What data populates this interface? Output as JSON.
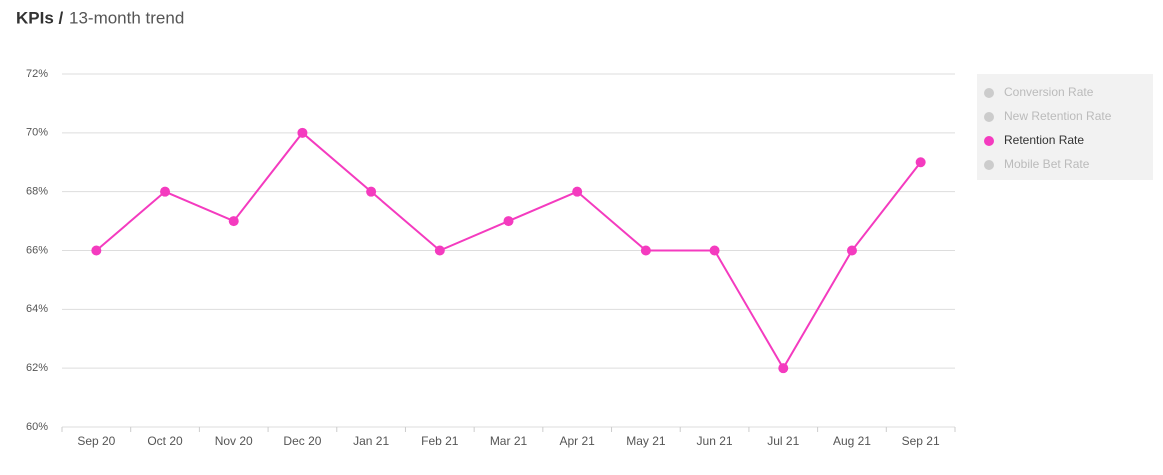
{
  "chart_data": {
    "type": "line",
    "title": "KPIs /",
    "subtitle": "13-month trend",
    "categories": [
      "Sep 20",
      "Oct 20",
      "Nov 20",
      "Dec 20",
      "Jan 21",
      "Feb 21",
      "Mar 21",
      "Apr 21",
      "May 21",
      "Jun 21",
      "Jul 21",
      "Aug 21",
      "Sep 21"
    ],
    "series": [
      {
        "name": "Conversion Rate",
        "color": "#cccccc",
        "visible": false,
        "values": [
          null,
          null,
          null,
          null,
          null,
          null,
          null,
          null,
          null,
          null,
          null,
          null,
          null
        ]
      },
      {
        "name": "New Retention Rate",
        "color": "#cccccc",
        "visible": false,
        "values": [
          null,
          null,
          null,
          null,
          null,
          null,
          null,
          null,
          null,
          null,
          null,
          null,
          null
        ]
      },
      {
        "name": "Retention Rate",
        "color": "#f43bbf",
        "visible": true,
        "values": [
          66,
          68,
          67,
          70,
          68,
          66,
          67,
          68,
          66,
          66,
          62,
          66,
          69
        ]
      },
      {
        "name": "Mobile Bet Rate",
        "color": "#cccccc",
        "visible": false,
        "values": [
          null,
          null,
          null,
          null,
          null,
          null,
          null,
          null,
          null,
          null,
          null,
          null,
          null
        ]
      }
    ],
    "ylim": [
      60,
      72
    ],
    "yticks": [
      {
        "value": 60,
        "label": "60%"
      },
      {
        "value": 62,
        "label": "62%"
      },
      {
        "value": 64,
        "label": "64%"
      },
      {
        "value": 66,
        "label": "66%"
      },
      {
        "value": 68,
        "label": "68%"
      },
      {
        "value": 70,
        "label": "70%"
      },
      {
        "value": 72,
        "label": "72%"
      }
    ],
    "grid": true,
    "legend": "right"
  }
}
